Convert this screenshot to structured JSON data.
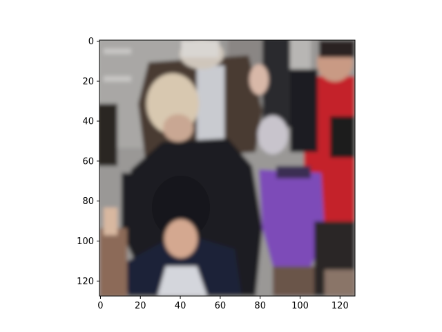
{
  "chart_data": {
    "type": "image",
    "title": "",
    "xlabel": "",
    "ylabel": "",
    "image_size": [
      128,
      128
    ],
    "xlim": [
      -0.5,
      127.5
    ],
    "ylim": [
      127.5,
      -0.5
    ],
    "xticks": [
      0,
      20,
      40,
      60,
      80,
      100,
      120
    ],
    "yticks": [
      0,
      20,
      40,
      60,
      80,
      100,
      120
    ],
    "grid": false,
    "colors": {
      "background": "#999999",
      "pavement": "#a7a4a1",
      "dark_jacket": "#1f1f24",
      "brown_coat": "#4a3b32",
      "navy_jacket": "#1d2238",
      "purple_bag": "#7d4bb8",
      "red_top": "#c4202c",
      "blonde_hair": "#d8c8b0",
      "skin": "#c89a82",
      "white_collar": "#d4d6dc"
    }
  }
}
